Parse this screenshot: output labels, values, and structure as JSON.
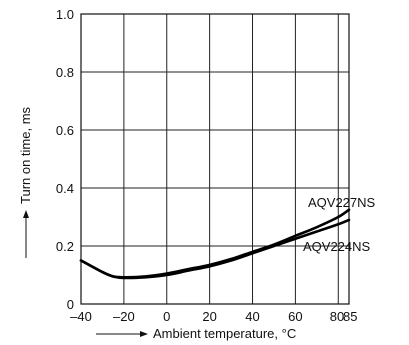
{
  "chart_data": {
    "type": "line",
    "title": "",
    "xlabel": "Ambient temperature, °C",
    "ylabel": "Turn on time, ms",
    "xlim": [
      -40,
      85
    ],
    "ylim": [
      0,
      1.0
    ],
    "x_ticks": [
      -40,
      -20,
      0,
      20,
      40,
      60,
      80,
      85
    ],
    "x_tick_labels": [
      "–40",
      "–20",
      "0",
      "20",
      "40",
      "60",
      "80",
      "85"
    ],
    "y_ticks": [
      0,
      0.2,
      0.4,
      0.6,
      0.8,
      1.0
    ],
    "y_tick_labels": [
      "0",
      "0.2",
      "0.4",
      "0.6",
      "0.8",
      "1.0"
    ],
    "grid": true,
    "series": [
      {
        "name": "AQV227NS",
        "x": [
          -40,
          -30,
          -25,
          -20,
          -10,
          0,
          10,
          20,
          30,
          40,
          50,
          60,
          70,
          80,
          85
        ],
        "y": [
          0.15,
          0.11,
          0.095,
          0.092,
          0.095,
          0.105,
          0.12,
          0.135,
          0.155,
          0.18,
          0.205,
          0.235,
          0.265,
          0.3,
          0.325
        ]
      },
      {
        "name": "AQV224NS",
        "x": [
          -40,
          -30,
          -25,
          -20,
          -10,
          0,
          10,
          20,
          30,
          40,
          50,
          60,
          70,
          80,
          85
        ],
        "y": [
          0.15,
          0.11,
          0.095,
          0.09,
          0.092,
          0.1,
          0.115,
          0.13,
          0.15,
          0.175,
          0.2,
          0.225,
          0.25,
          0.275,
          0.29
        ]
      }
    ]
  }
}
